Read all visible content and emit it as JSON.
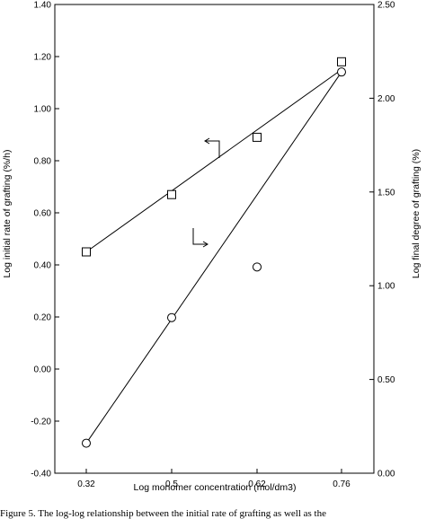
{
  "chart_data": {
    "type": "scatter",
    "title": "",
    "xlabel": "Log monomer concentration (mol/dm3)",
    "ylabel_left": "Log initial rate of grafting (%/h)",
    "ylabel_right": "Log final degree of grafting (%)",
    "x_categories": [
      "0.32",
      "0.5",
      "0.62",
      "0.76"
    ],
    "y_left_lim": [
      -0.4,
      1.4
    ],
    "y_left_ticks": [
      "-0.40",
      "-0.20",
      "0.00",
      "0.20",
      "0.40",
      "0.60",
      "0.80",
      "1.00",
      "1.20",
      "1.40"
    ],
    "y_right_lim": [
      0.0,
      2.5
    ],
    "y_right_ticks": [
      "0.00",
      "0.50",
      "1.00",
      "1.50",
      "2.00",
      "2.50"
    ],
    "grid": false,
    "series": [
      {
        "marker": "square",
        "axis": "left",
        "x": [
          "0.32",
          "0.5",
          "0.62",
          "0.76"
        ],
        "y": [
          0.45,
          0.67,
          0.89,
          1.18
        ],
        "fit_line": [
          [
            0.32,
            0.45
          ],
          [
            0.76,
            1.15
          ]
        ]
      },
      {
        "marker": "circle",
        "axis": "right",
        "x": [
          "0.32",
          "0.5",
          "0.62",
          "0.76"
        ],
        "y": [
          0.16,
          0.83,
          1.1,
          2.14
        ],
        "fit_line": [
          [
            0.32,
            0.16
          ],
          [
            0.76,
            2.14
          ]
        ]
      }
    ]
  },
  "caption": "Figure 5. The log-log relationship between the initial rate of grafting as well as the"
}
